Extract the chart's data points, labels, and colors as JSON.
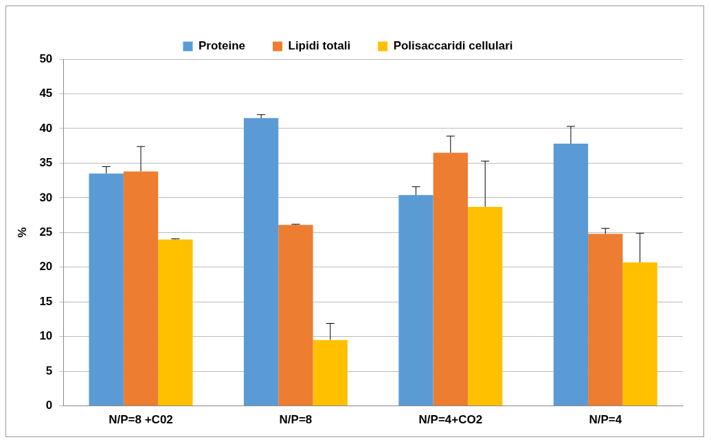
{
  "chart_data": {
    "type": "bar",
    "ylabel": "%",
    "categories": [
      "N/P=8 +C02",
      "N/P=8",
      "N/P=4+CO2",
      "N/P=4"
    ],
    "series": [
      {
        "name": "Proteine",
        "color": "#5b9bd5",
        "values": [
          33.5,
          41.5,
          30.4,
          37.8
        ],
        "errors": [
          [
            33.5,
            34.5
          ],
          [
            41.5,
            42.0
          ],
          [
            30.4,
            31.6
          ],
          [
            37.8,
            40.3
          ]
        ]
      },
      {
        "name": "Lipidi totali",
        "color": "#ed7d31",
        "values": [
          33.8,
          26.1,
          36.5,
          24.8
        ],
        "errors": [
          [
            33.8,
            37.4
          ],
          [
            26.1,
            26.2
          ],
          [
            36.5,
            38.9
          ],
          [
            24.8,
            25.6
          ]
        ]
      },
      {
        "name": "Polisaccaridi cellulari",
        "color": "#ffc000",
        "values": [
          24.0,
          9.5,
          28.7,
          20.7
        ],
        "errors": [
          [
            24.0,
            24.1
          ],
          [
            9.5,
            11.9
          ],
          [
            28.7,
            35.3
          ],
          [
            20.7,
            24.9
          ]
        ]
      }
    ],
    "ylim": [
      0,
      50
    ],
    "yticks": [
      0,
      5,
      10,
      15,
      20,
      25,
      30,
      35,
      40,
      45,
      50
    ],
    "grid": "y",
    "legend": "top"
  }
}
